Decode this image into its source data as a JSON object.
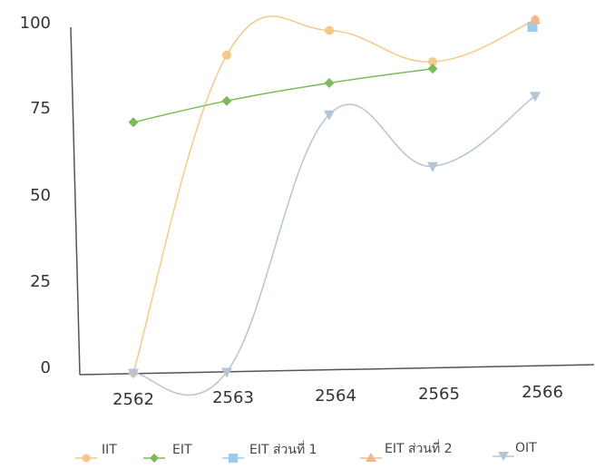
{
  "chart_data": {
    "type": "line",
    "categories": [
      "2562",
      "2563",
      "2564",
      "2565",
      "2566"
    ],
    "yticks": [
      "0",
      "25",
      "50",
      "75",
      "100"
    ],
    "ylim": [
      0,
      100
    ],
    "grid": false,
    "legend_position": "bottom",
    "series": [
      {
        "name": "IIT",
        "color": "#f5c98a",
        "marker": "circle",
        "values": [
          0,
          90,
          97,
          88,
          100
        ]
      },
      {
        "name": "EIT",
        "color": "#7dbb5a",
        "marker": "diamond",
        "values": [
          71,
          77,
          82,
          86,
          null
        ]
      },
      {
        "name": "EIT ส่วนที่ 1",
        "color": "#9fcbea",
        "marker": "square",
        "values": [
          null,
          null,
          null,
          null,
          98
        ]
      },
      {
        "name": "EIT ส่วนที่ 2",
        "color": "#efb795",
        "marker": "triangle",
        "values": [
          null,
          null,
          null,
          null,
          100
        ]
      },
      {
        "name": "OIT",
        "color": "#b5c4d6",
        "marker": "triangle-down",
        "values": [
          0,
          0,
          73,
          58,
          78
        ]
      }
    ]
  }
}
